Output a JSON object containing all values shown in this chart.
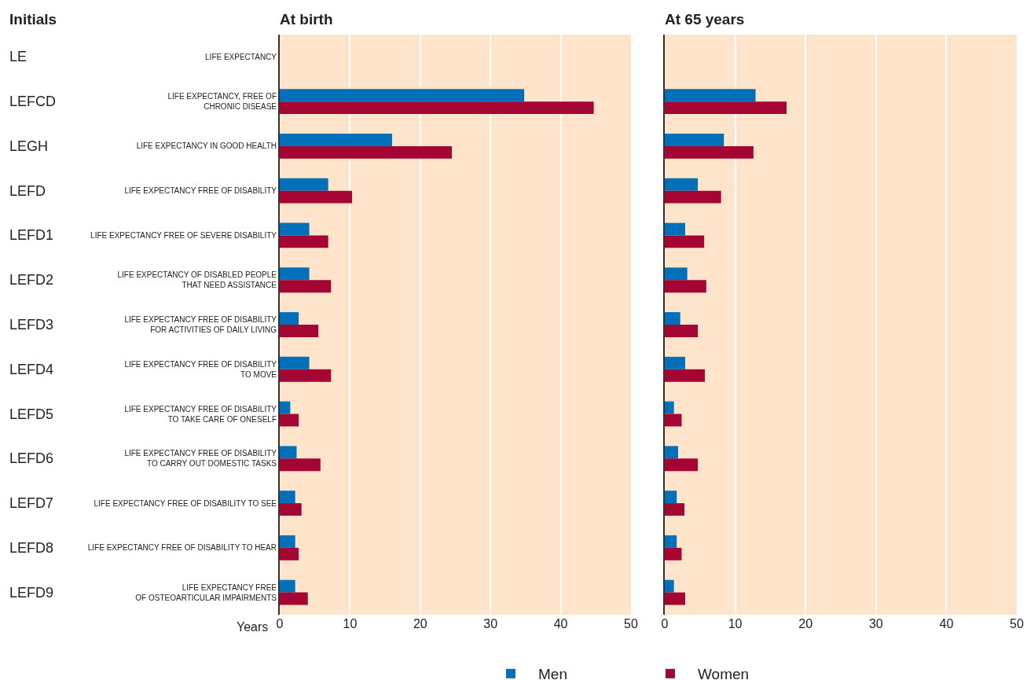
{
  "chart_data": [
    {
      "type": "bar",
      "orientation": "horizontal",
      "title": "At birth",
      "xlabel": "Years",
      "ylabel": "Initials",
      "categories": [
        "LIFE EXPECTANCY",
        "LIFE EXPECTANCY, FREE OF\nCHRONIC DISEASE",
        "LIFE EXPECTANCY IN GOOD HEALTH",
        "LIFE EXPECTANCY FREE OF DISABILITY",
        "LIFE EXPECTANCY FREE OF SEVERE DISABILITY",
        "LIFE EXPECTANCY OF DISABLED PEOPLE\nTHAT NEED ASSISTANCE",
        "LIFE EXPECTANCY FREE OF DISABILITY\nFOR ACTIVITIES OF DAILY LIVING",
        "LIFE EXPECTANCY FREE OF DISABILITY\nTO MOVE",
        "LIFE EXPECTANCY FREE OF DISABILITY\nTO TAKE CARE OF ONESELF",
        "LIFE EXPECTANCY FREE OF DISABILITY\nTO CARRY OUT DOMESTIC TASKS",
        "LIFE EXPECTANCY FREE OF DISABILITY TO SEE",
        "LIFE EXPECTANCY FREE OF DISABILITY TO HEAR",
        "LIFE EXPECTANCY FREE\nOF OSTEOARTICULAR IMPAIRMENTS"
      ],
      "series": [
        {
          "name": "Men",
          "color": "#0070bb",
          "values": [
            null,
            34.8,
            16.0,
            6.9,
            4.2,
            4.2,
            2.7,
            4.2,
            1.5,
            2.4,
            2.2,
            2.2,
            2.2
          ]
        },
        {
          "name": "Women",
          "color": "#a50533",
          "values": [
            null,
            44.7,
            24.5,
            10.3,
            6.9,
            7.3,
            5.5,
            7.3,
            2.7,
            5.8,
            3.1,
            2.7,
            4.0
          ]
        }
      ],
      "annotations": [
        "LE",
        "LEFCD",
        "LEGH",
        "LEFD",
        "LEFD1",
        "LEFD2",
        "LEFD3",
        "LEFD4",
        "LEFD5",
        "LEFD6",
        "LEFD7",
        "LEFD8",
        "LEFD9"
      ],
      "xlim": [
        0,
        50
      ],
      "xticks": [
        0,
        10,
        20,
        30,
        40,
        50
      ],
      "grid": "x",
      "legend": "bottom"
    },
    {
      "type": "bar",
      "orientation": "horizontal",
      "title": "At 65 years",
      "categories": [
        null,
        null,
        null,
        null,
        null,
        null,
        null,
        null,
        null,
        null,
        null,
        null,
        null
      ],
      "series": [
        {
          "color": "#0070bb",
          "values": [
            null,
            12.9,
            8.4,
            4.7,
            2.9,
            3.2,
            2.2,
            2.9,
            1.3,
            1.9,
            1.7,
            1.7,
            1.3
          ]
        },
        {
          "color": "#a50533",
          "values": [
            null,
            17.3,
            12.6,
            8.0,
            5.6,
            5.9,
            4.7,
            5.7,
            2.4,
            4.7,
            2.8,
            2.4,
            2.9
          ]
        }
      ],
      "xlim": [
        0,
        50
      ],
      "xticks": [
        0,
        10,
        20,
        30,
        40,
        50
      ],
      "grid": "x",
      "tick_labels": "x"
    }
  ]
}
